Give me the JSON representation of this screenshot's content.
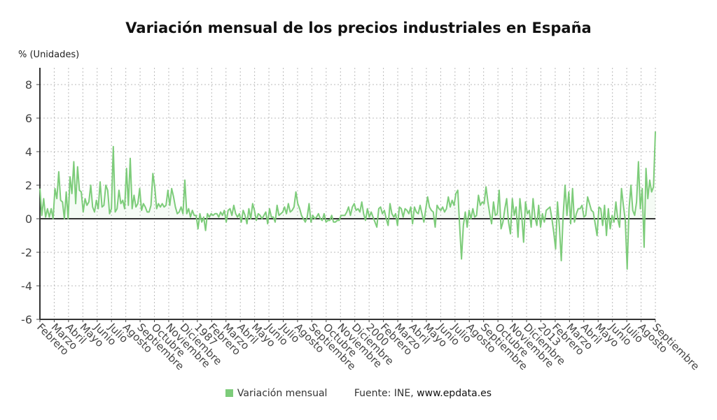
{
  "chart_data": {
    "type": "line",
    "title": "Variación mensual de los precios industriales en España",
    "ylabel": "% (Unidades)",
    "xlabel": "",
    "ylim": [
      -6,
      9
    ],
    "yticks": [
      -6,
      -4,
      -2,
      0,
      2,
      4,
      6,
      8
    ],
    "grid": true,
    "legend_position": "bottom",
    "x_tick_labels": [
      "Febrero",
      "Marzo",
      "Abril",
      "Mayo",
      "Junio",
      "Julio",
      "Agosto",
      "Septiembre",
      "Octubre",
      "Noviembre",
      "Diciembre",
      "1987",
      "Febrero",
      "Marzo",
      "Abril",
      "Mayo",
      "Junio",
      "Julio",
      "Agosto",
      "Septiembre",
      "Octubre",
      "Noviembre",
      "Diciembre",
      "2000",
      "Febrero",
      "Marzo",
      "Abril",
      "Mayo",
      "Junio",
      "Julio",
      "Agosto",
      "Septiembre",
      "Octubre",
      "Noviembre",
      "Diciembre",
      "2013",
      "Febrero",
      "Marzo",
      "Abril",
      "Mayo",
      "Junio",
      "Julio",
      "Agosto",
      "Septiembre"
    ],
    "series": [
      {
        "name": "Variación mensual",
        "color": "#7dcc7a",
        "values": [
          1.8,
          0.2,
          1.2,
          0.1,
          0.6,
          0.1,
          0.6,
          0.0,
          1.8,
          1.2,
          2.8,
          1.1,
          1.0,
          0.0,
          1.6,
          0.0,
          2.5,
          1.5,
          3.4,
          0.9,
          3.1,
          1.7,
          1.6,
          0.4,
          1.2,
          0.8,
          1.0,
          2.0,
          0.7,
          0.4,
          1.1,
          0.6,
          2.2,
          0.7,
          0.8,
          2.0,
          1.7,
          0.3,
          0.6,
          4.3,
          0.4,
          0.6,
          1.7,
          0.9,
          1.1,
          0.6,
          3.0,
          0.8,
          3.6,
          0.6,
          1.4,
          0.7,
          0.9,
          1.8,
          0.5,
          0.9,
          0.7,
          0.4,
          0.4,
          0.8,
          2.7,
          1.9,
          0.6,
          0.9,
          0.7,
          0.9,
          0.7,
          0.8,
          1.7,
          0.8,
          1.8,
          1.3,
          0.7,
          0.3,
          0.4,
          0.7,
          0.3,
          2.3,
          0.3,
          0.6,
          0.1,
          0.5,
          0.2,
          0.2,
          -0.6,
          0.3,
          -0.2,
          0.1,
          -0.7,
          0.3,
          0.1,
          0.3,
          0.2,
          0.3,
          0.3,
          0.1,
          0.4,
          0.2,
          0.5,
          -0.2,
          0.5,
          0.6,
          0.2,
          0.8,
          0.3,
          0.1,
          0.3,
          -0.2,
          0.5,
          0.2,
          -0.3,
          0.6,
          0.0,
          0.9,
          0.5,
          -0.1,
          0.3,
          0.2,
          0.0,
          0.2,
          0.4,
          -0.3,
          0.6,
          0.1,
          0.1,
          -0.2,
          0.8,
          0.2,
          0.3,
          0.4,
          0.7,
          0.3,
          0.9,
          0.4,
          0.5,
          0.7,
          1.6,
          0.9,
          0.6,
          0.2,
          0.0,
          -0.2,
          0.1,
          0.9,
          -0.2,
          0.2,
          0.0,
          0.1,
          0.3,
          0.0,
          -0.1,
          0.3,
          -0.2,
          -0.1,
          -0.1,
          0.2,
          -0.2,
          -0.2,
          -0.1,
          -0.1,
          0.2,
          0.2,
          0.2,
          0.4,
          0.7,
          0.2,
          0.7,
          0.9,
          0.5,
          0.6,
          0.4,
          1.0,
          0.3,
          -0.1,
          0.6,
          0.1,
          0.4,
          0.1,
          -0.2,
          -0.5,
          0.6,
          0.7,
          0.3,
          0.5,
          0.0,
          -0.4,
          0.9,
          0.3,
          0.1,
          0.3,
          -0.4,
          0.7,
          0.6,
          0.1,
          0.6,
          0.5,
          0.3,
          0.7,
          -0.3,
          0.7,
          0.4,
          0.3,
          0.8,
          0.3,
          -0.2,
          0.6,
          1.3,
          0.7,
          0.5,
          0.4,
          -0.5,
          0.8,
          0.6,
          0.5,
          0.7,
          0.4,
          0.6,
          1.3,
          0.7,
          1.1,
          0.8,
          1.5,
          1.7,
          -0.4,
          -2.4,
          -0.4,
          0.4,
          -0.5,
          0.5,
          0.0,
          0.6,
          0.1,
          0.2,
          1.4,
          0.8,
          1.0,
          0.9,
          1.9,
          1.0,
          0.3,
          -0.3,
          1.0,
          0.2,
          0.3,
          1.7,
          -0.6,
          -0.2,
          0.6,
          1.2,
          -0.2,
          -0.9,
          1.2,
          0.2,
          0.7,
          -1.1,
          1.2,
          0.2,
          -1.4,
          1.0,
          0.3,
          0.5,
          -0.5,
          1.2,
          0.1,
          -0.4,
          0.8,
          -0.5,
          0.3,
          -0.2,
          0.5,
          0.6,
          0.7,
          0.0,
          -0.8,
          -1.8,
          1.0,
          -0.5,
          -2.5,
          0.2,
          2.0,
          0.2,
          1.6,
          -0.3,
          1.8,
          -0.2,
          0.3,
          0.6,
          0.6,
          0.8,
          0.1,
          0.2,
          1.3,
          0.9,
          0.5,
          0.4,
          -0.3,
          -1.0,
          0.7,
          0.6,
          -0.4,
          0.8,
          -1.0,
          0.6,
          -0.6,
          0.2,
          -0.2,
          1.0,
          0.0,
          -0.5,
          1.8,
          0.8,
          -0.1,
          -3.0,
          0.6,
          2.0,
          0.5,
          0.2,
          1.0,
          3.4,
          0.6,
          1.8,
          -1.7,
          3.0,
          1.2,
          2.3,
          1.6,
          1.9,
          5.2
        ]
      }
    ]
  },
  "legend": {
    "series_label": "Variación mensual",
    "source_prefix": "Fuente: INE,",
    "source_site": "www.epdata.es"
  }
}
